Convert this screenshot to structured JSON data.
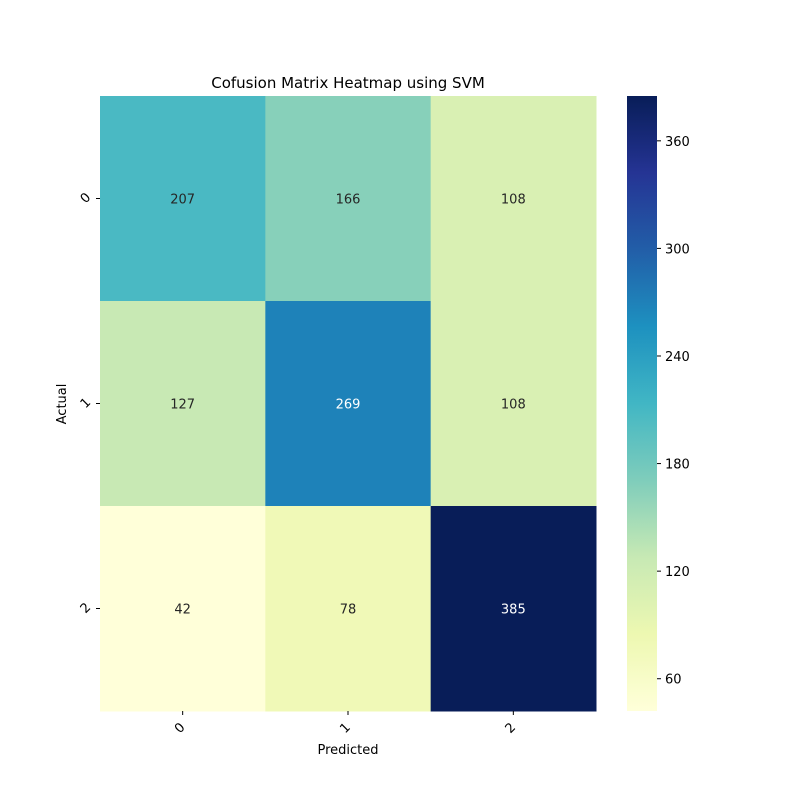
{
  "chart_data": {
    "type": "heatmap",
    "title": "Cofusion Matrix Heatmap using SVM",
    "xlabel": "Predicted",
    "ylabel": "Actual",
    "x_categories": [
      "0",
      "1",
      "2"
    ],
    "y_categories": [
      "0",
      "1",
      "2"
    ],
    "values": [
      [
        207,
        166,
        108
      ],
      [
        127,
        269,
        108
      ],
      [
        42,
        78,
        385
      ]
    ],
    "colormap": "YlGnBu",
    "colorbar": {
      "range": [
        42,
        385
      ],
      "ticks": [
        "60",
        "120",
        "180",
        "240",
        "300",
        "360"
      ]
    },
    "colors": {
      "light_text": "#ffffff",
      "dark_text": "#262626"
    }
  }
}
